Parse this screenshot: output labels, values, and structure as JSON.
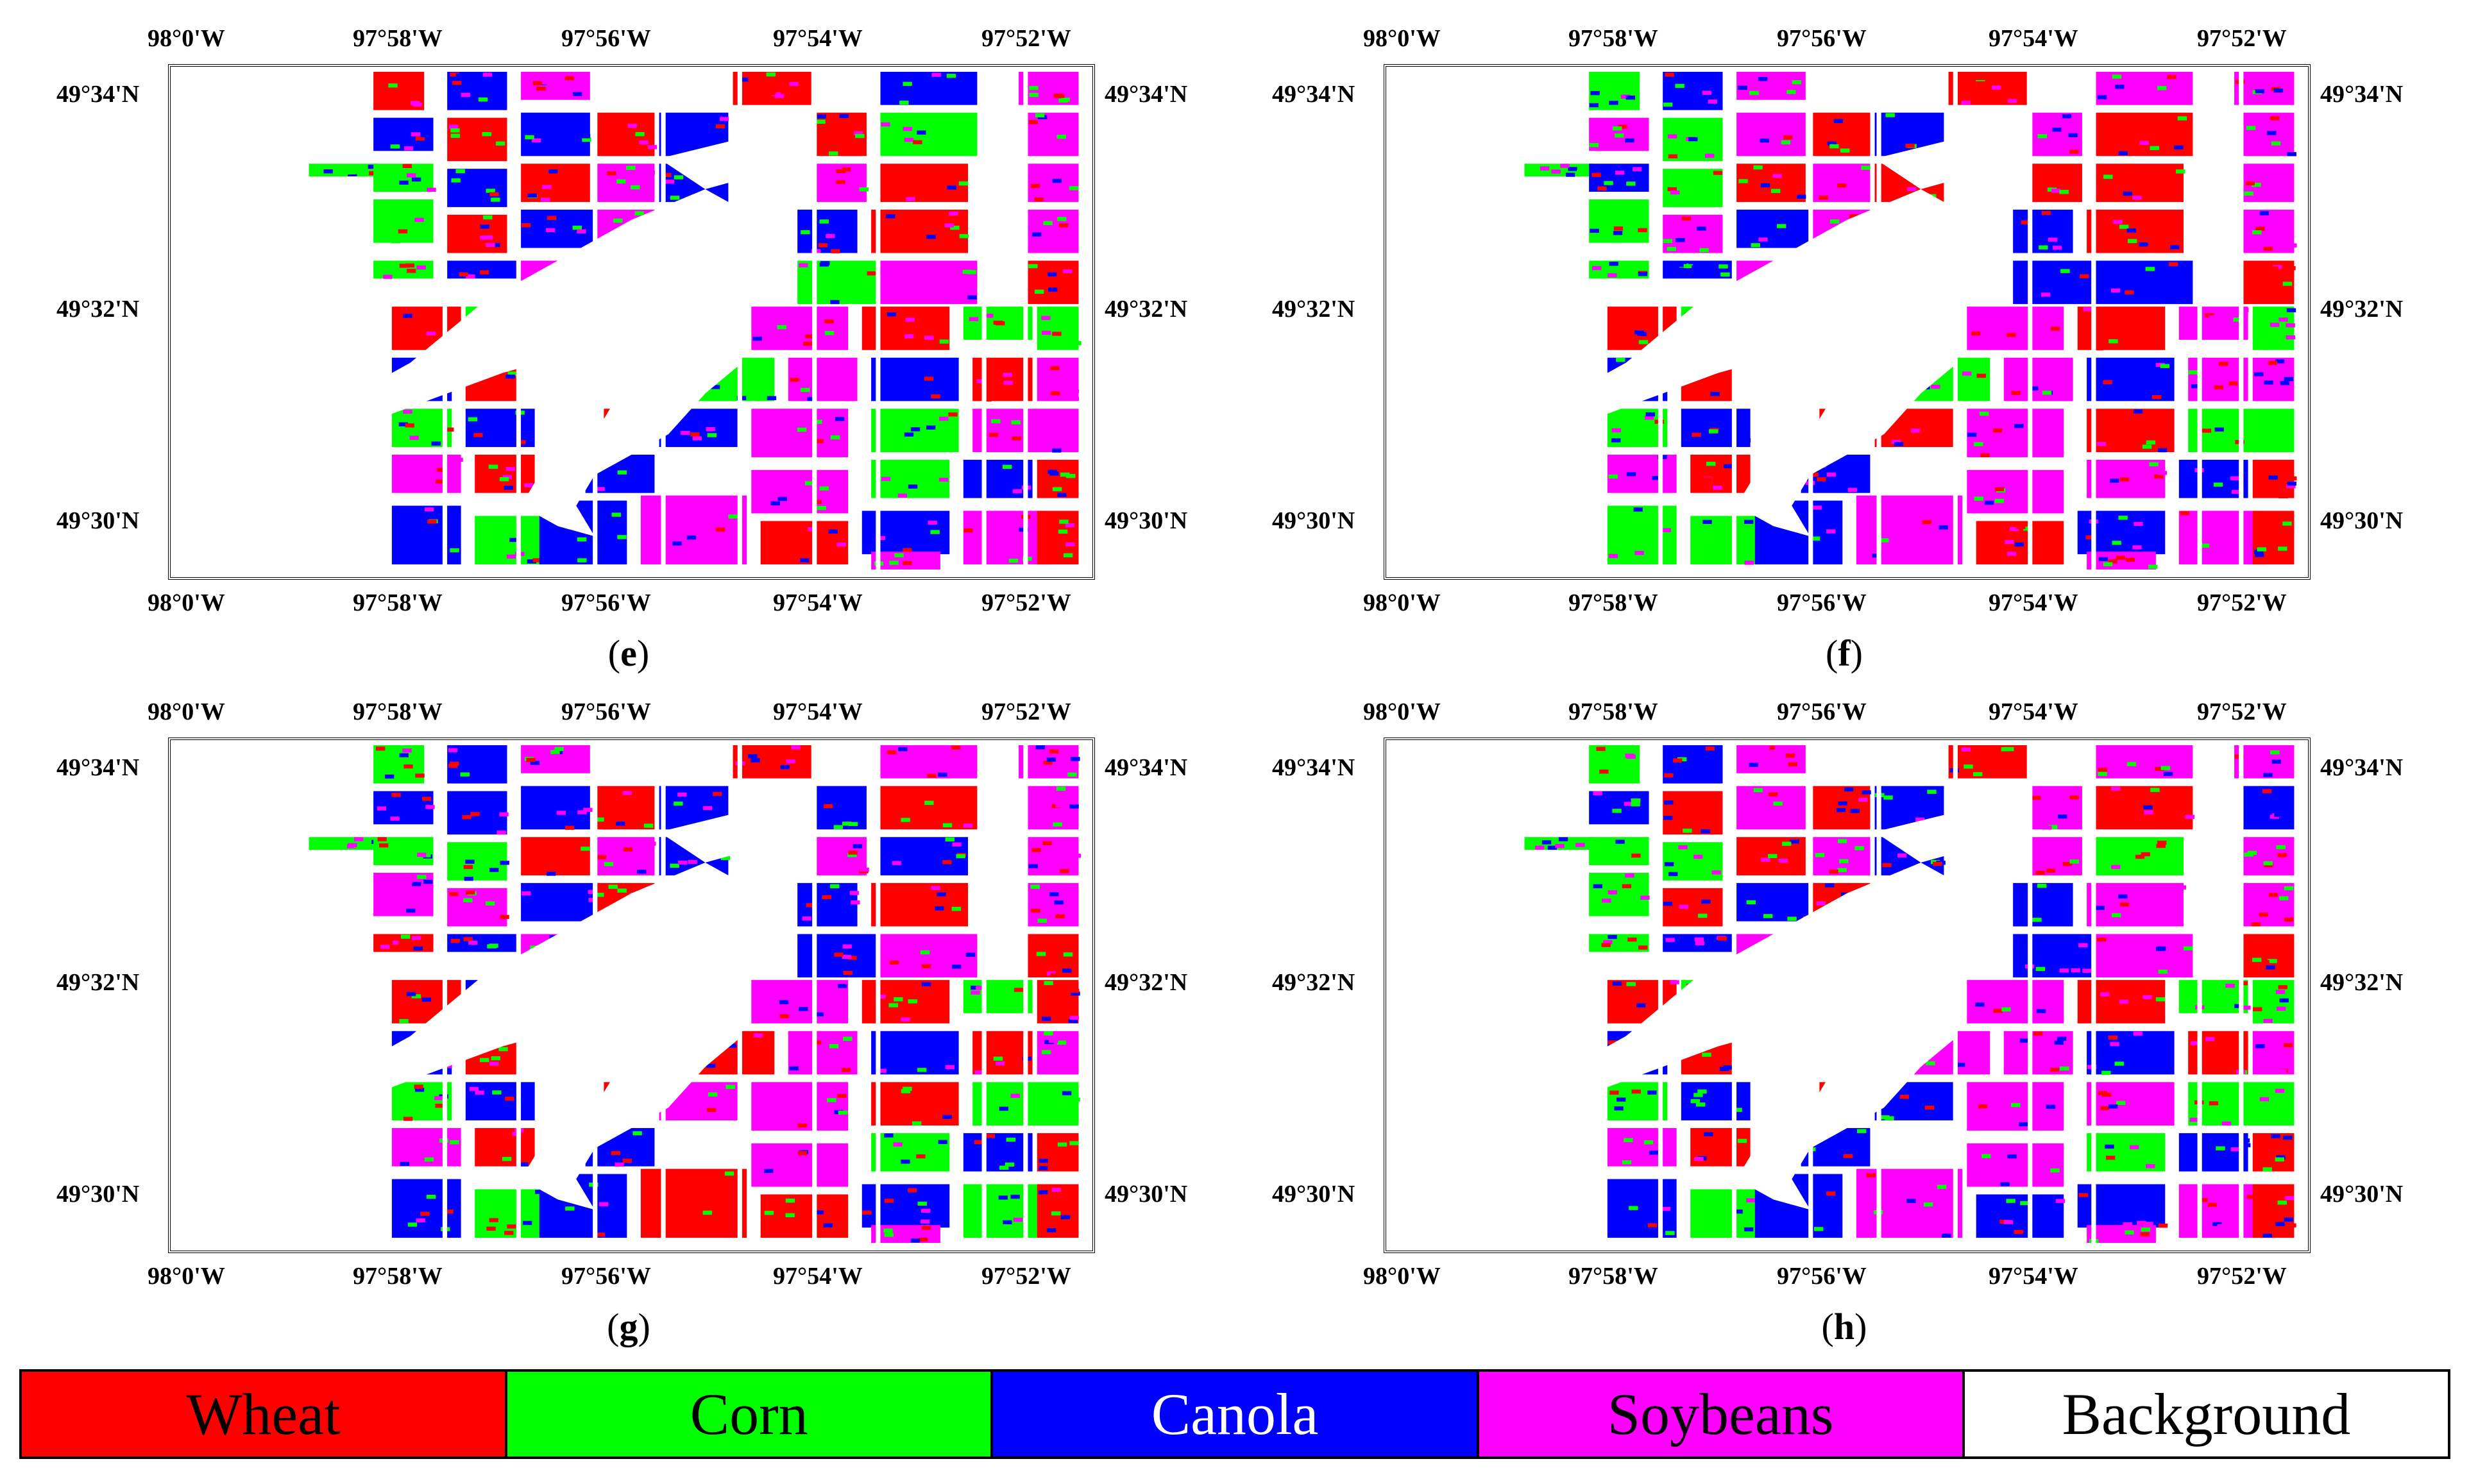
{
  "x_ticks_top": [
    "98°0'W",
    "97°58'W",
    "97°56'W",
    "97°54'W",
    "97°52'W"
  ],
  "x_ticks_bottom": [
    "98°0'W",
    "97°58'W",
    "97°56'W",
    "97°54'W",
    "97°52'W"
  ],
  "y_ticks": [
    "49°34'N",
    "49°32'N",
    "49°30'N"
  ],
  "panels": [
    {
      "id": "e",
      "label": "e"
    },
    {
      "id": "f",
      "label": "f"
    },
    {
      "id": "g",
      "label": "g"
    },
    {
      "id": "h",
      "label": "h"
    }
  ],
  "legend": [
    {
      "label": "Wheat",
      "color": "#ff0000"
    },
    {
      "label": "Corn",
      "color": "#00ff00"
    },
    {
      "label": "Canola",
      "color": "#0000ff"
    },
    {
      "label": "Soybeans",
      "color": "#ff00ff"
    },
    {
      "label": "Background",
      "color": "#ffffff"
    }
  ]
}
